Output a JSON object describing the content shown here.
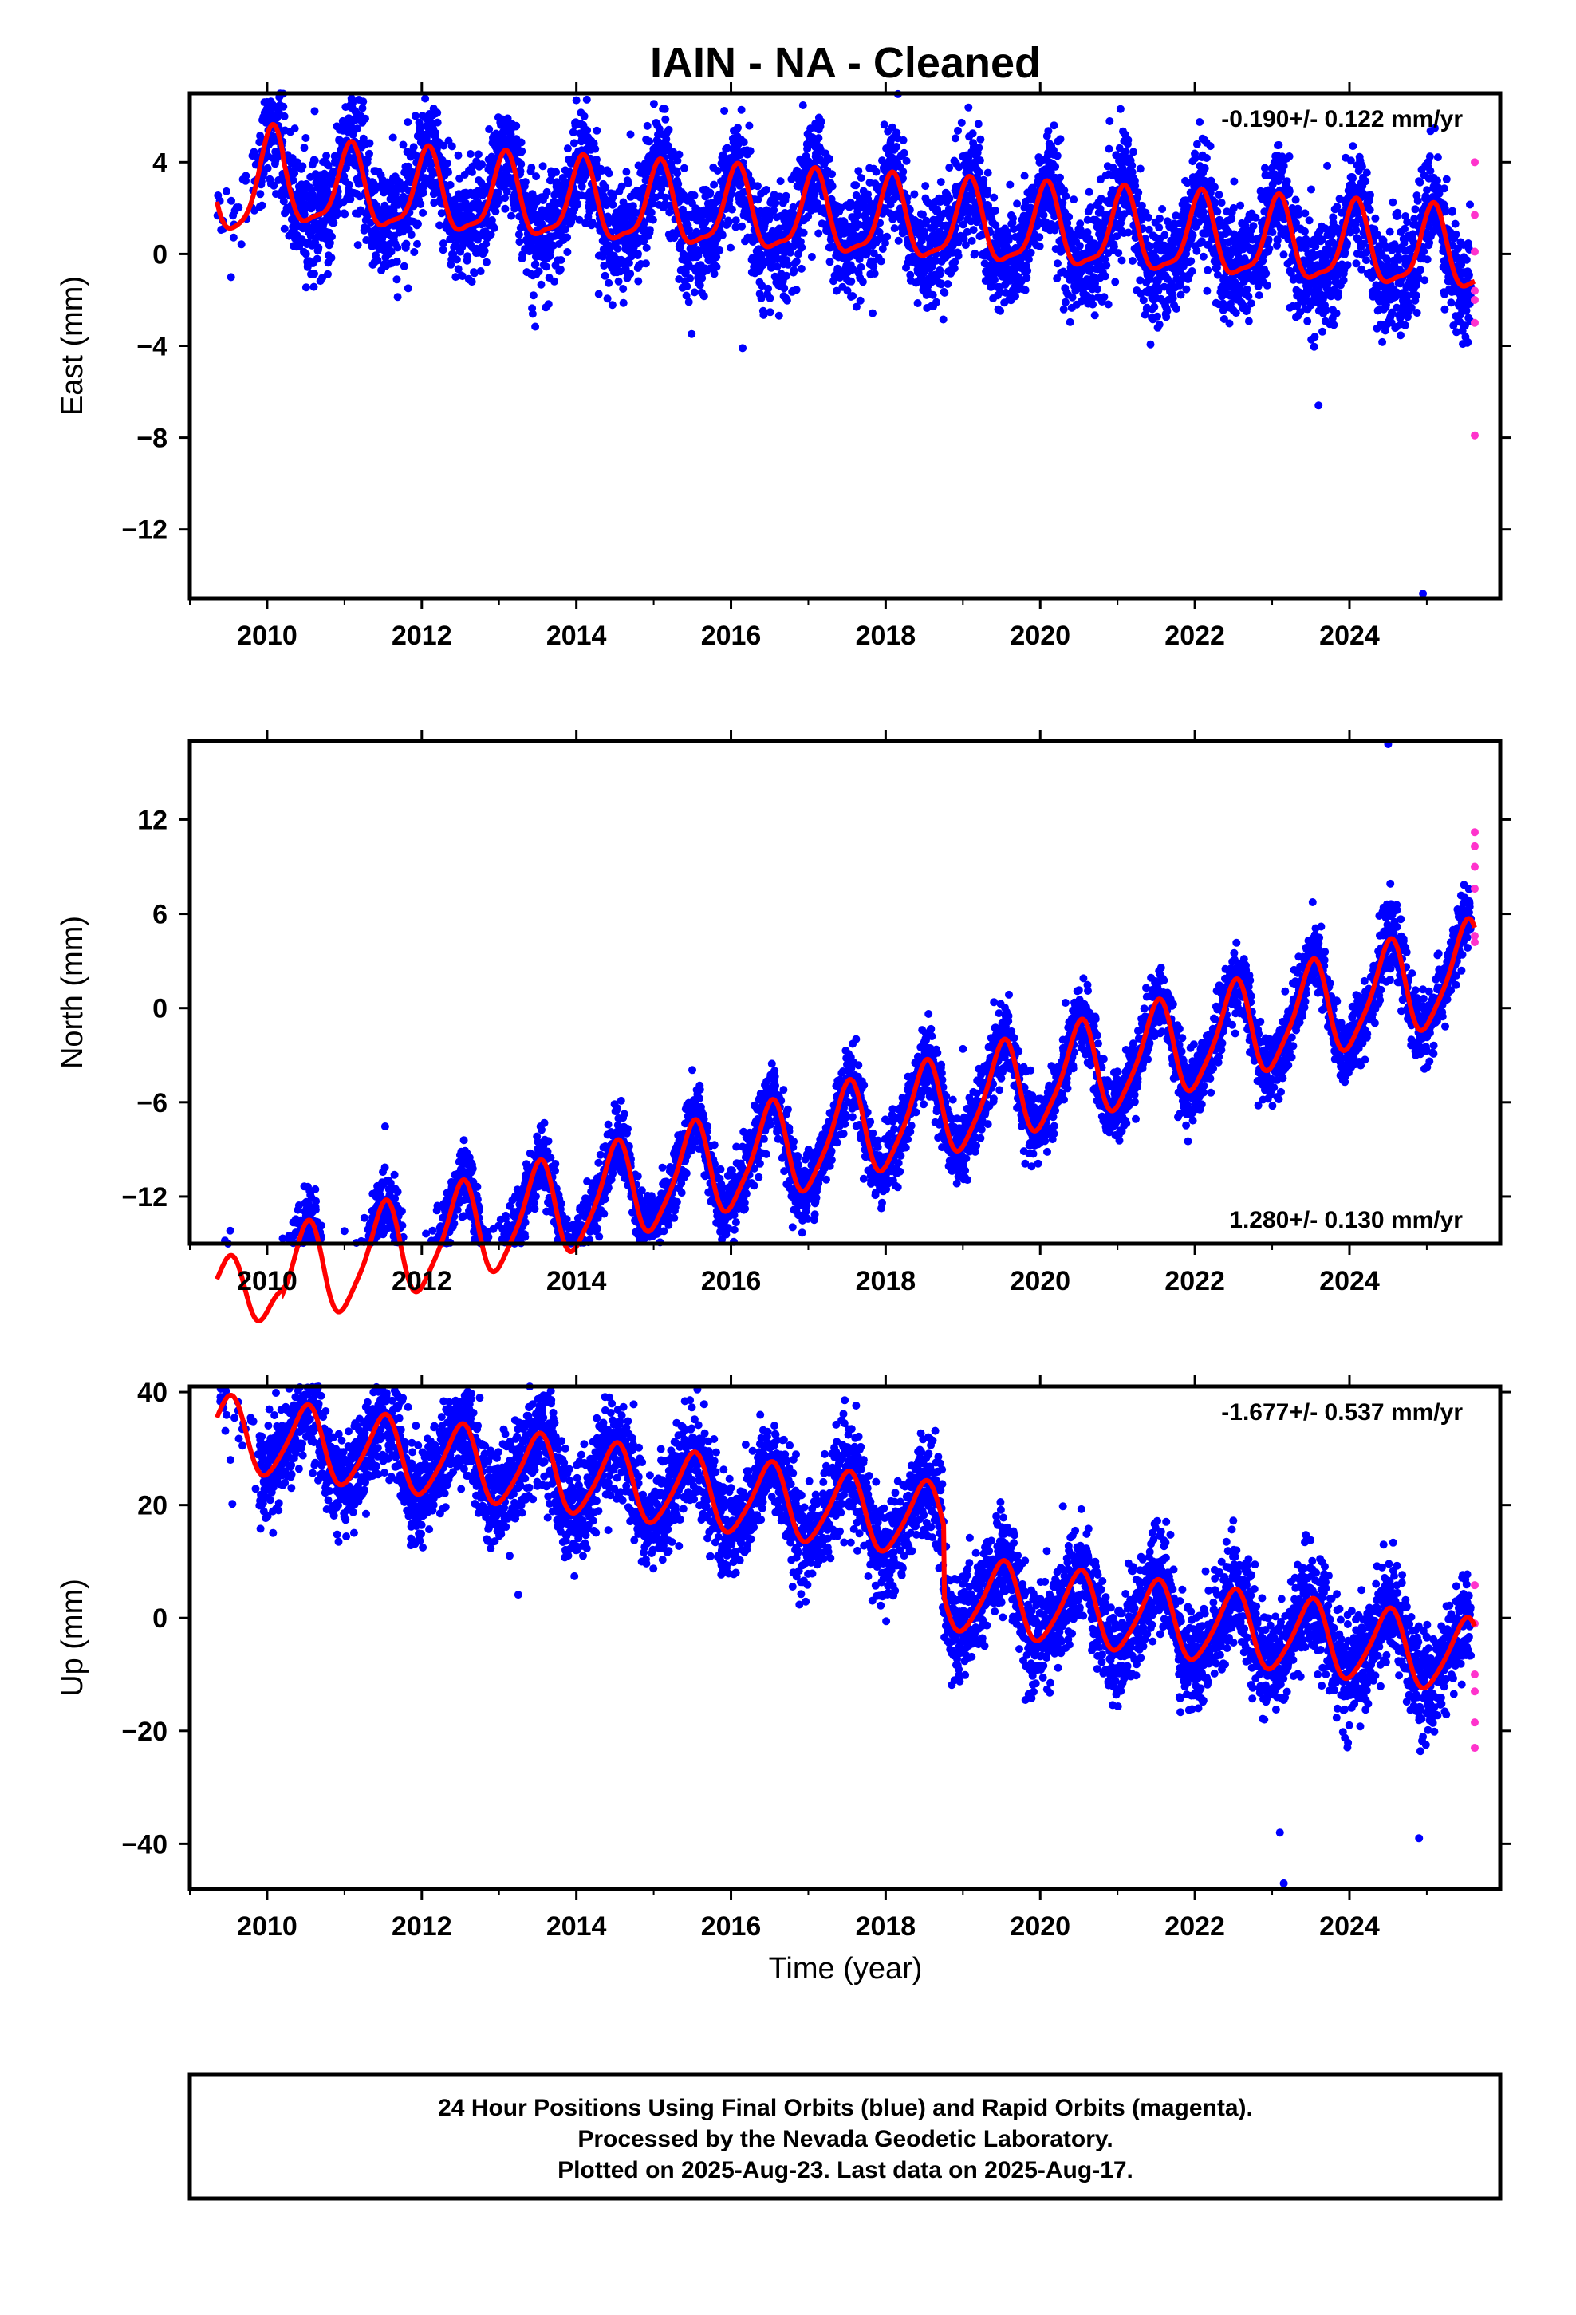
{
  "title": "IAIN  - NA - Cleaned",
  "xlabel": "Time (year)",
  "footer": {
    "line1": "24 Hour Positions Using Final Orbits (blue) and Rapid Orbits (magenta).",
    "line2": "Processed by the Nevada Geodetic Laboratory.",
    "line3": "Plotted on 2025-Aug-23. Last data on 2025-Aug-17."
  },
  "colors": {
    "final": "#0000ff",
    "rapid": "#ff33cc",
    "model": "#ff0000",
    "frame": "#000000"
  },
  "chart_data": [
    {
      "type": "scatter",
      "component": "East",
      "ylabel": "East (mm)",
      "rate_label": "-0.190+/- 0.122 mm/yr",
      "xlim": [
        2009.0,
        2025.95
      ],
      "ylim": [
        -15.0,
        7.0
      ],
      "xticks": [
        2010,
        2012,
        2014,
        2016,
        2018,
        2020,
        2022,
        2024
      ],
      "yticks": [
        4,
        0,
        -4,
        -8,
        -12
      ],
      "model": {
        "start": 2009.35,
        "end": 2025.62,
        "intercept": 1.5,
        "rate": -0.19,
        "annual_amp": 1.7,
        "annual_phase": 1.1,
        "semiannual_amp": 0.5,
        "semiannual_phase": 0.3,
        "early_anomaly": true
      },
      "noise_sd": 1.2,
      "rapid_points": [
        [
          2025.62,
          4.0
        ],
        [
          2025.62,
          1.7
        ],
        [
          2025.62,
          0.1
        ],
        [
          2025.62,
          -1.6
        ],
        [
          2025.62,
          -2.0
        ],
        [
          2025.62,
          -3.0
        ],
        [
          2025.62,
          -7.9
        ]
      ],
      "outliers": [
        [
          2014.0,
          6.7
        ],
        [
          2024.95,
          -14.8
        ],
        [
          2023.6,
          -6.6
        ],
        [
          2016.15,
          -4.1
        ]
      ]
    },
    {
      "type": "scatter",
      "component": "North",
      "ylabel": "North (mm)",
      "rate_label": "1.280+/- 0.130 mm/yr",
      "xlim": [
        2009.0,
        2025.95
      ],
      "ylim": [
        -15.0,
        17.0
      ],
      "xticks": [
        2010,
        2012,
        2014,
        2016,
        2018,
        2020,
        2022,
        2024
      ],
      "yticks": [
        12,
        6,
        0,
        -6,
        -12
      ],
      "model": {
        "start": 2009.35,
        "end": 2025.62,
        "intercept": -8.0,
        "rate": 1.28,
        "annual_amp": 3.0,
        "annual_phase": 4.712,
        "semiannual_amp": 0.6,
        "semiannual_phase": 0.5,
        "early_anomaly": true
      },
      "noise_sd": 1.1,
      "rapid_points": [
        [
          2025.62,
          11.2
        ],
        [
          2025.62,
          10.3
        ],
        [
          2025.62,
          9.0
        ],
        [
          2025.62,
          7.6
        ],
        [
          2025.62,
          4.6
        ],
        [
          2025.62,
          4.2
        ]
      ],
      "outliers": [
        [
          2024.5,
          16.8
        ],
        [
          2011.0,
          -14.2
        ],
        [
          2012.7,
          -12.2
        ],
        [
          2019.0,
          -2.6
        ]
      ]
    },
    {
      "type": "scatter",
      "component": "Up",
      "ylabel": "Up (mm)",
      "rate_label": "-1.677+/- 0.537 mm/yr",
      "xlim": [
        2009.0,
        2025.95
      ],
      "ylim": [
        -48.0,
        41.0
      ],
      "xticks": [
        2010,
        2012,
        2014,
        2016,
        2018,
        2020,
        2022,
        2024
      ],
      "yticks": [
        40,
        20,
        0,
        -20,
        -40
      ],
      "model": {
        "start": 2009.35,
        "end": 2025.62,
        "intercept": 13.0,
        "rate": -1.677,
        "annual_amp": 6.5,
        "annual_phase": 4.712,
        "semiannual_amp": 1.0,
        "semiannual_phase": 0.4,
        "early_anomaly": false
      },
      "noise_sd": 4.5,
      "offset": {
        "year": 2018.75,
        "pre_shift": 6.0,
        "post_shift": -6.5
      },
      "rapid_points": [
        [
          2025.62,
          5.8
        ],
        [
          2025.62,
          -1.0
        ],
        [
          2025.62,
          -10.0
        ],
        [
          2025.62,
          -13.0
        ],
        [
          2025.62,
          -18.5
        ],
        [
          2025.62,
          -23.0
        ]
      ],
      "outliers": [
        [
          2012.75,
          39.0
        ],
        [
          2023.15,
          -47.0
        ],
        [
          2024.9,
          -39.0
        ],
        [
          2018.65,
          27.5
        ],
        [
          2009.55,
          20.2
        ],
        [
          2010.45,
          34.0
        ],
        [
          2023.1,
          -38.0
        ]
      ]
    }
  ]
}
